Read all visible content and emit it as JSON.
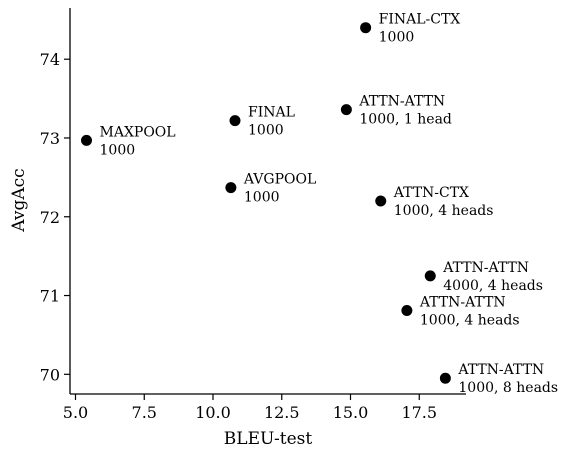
{
  "chart_data": {
    "type": "scatter",
    "xlabel": "BLEU-test",
    "ylabel": "AvgAcc",
    "xlim": [
      4.8,
      19.2
    ],
    "ylim": [
      69.75,
      74.65
    ],
    "xticks": [
      5.0,
      7.5,
      10.0,
      12.5,
      15.0,
      17.5
    ],
    "xtick_labels": [
      "5.0",
      "7.5",
      "10.0",
      "12.5",
      "15.0",
      "17.5"
    ],
    "yticks": [
      70,
      71,
      72,
      73,
      74
    ],
    "ytick_labels": [
      "70",
      "71",
      "72",
      "73",
      "74"
    ],
    "grid": false,
    "legend": "none",
    "points": [
      {
        "x": 5.4,
        "y": 72.97,
        "label": "MAXPOOL",
        "sublabel": "1000"
      },
      {
        "x": 10.8,
        "y": 73.22,
        "label": "FINAL",
        "sublabel": "1000"
      },
      {
        "x": 10.65,
        "y": 72.37,
        "label": "AVGPOOL",
        "sublabel": "1000"
      },
      {
        "x": 15.55,
        "y": 74.4,
        "label": "FINAL-CTX",
        "sublabel": "1000"
      },
      {
        "x": 14.85,
        "y": 73.36,
        "label": "ATTN-ATTN",
        "sublabel": "1000, 1 head"
      },
      {
        "x": 16.1,
        "y": 72.2,
        "label": "ATTN-CTX",
        "sublabel": "1000, 4 heads"
      },
      {
        "x": 17.9,
        "y": 71.25,
        "label": "ATTN-ATTN",
        "sublabel": "4000, 4 heads"
      },
      {
        "x": 17.05,
        "y": 70.81,
        "label": "ATTN-ATTN",
        "sublabel": "1000, 4 heads"
      },
      {
        "x": 18.45,
        "y": 69.95,
        "label": "ATTN-ATTN",
        "sublabel": "1000, 8 heads"
      }
    ],
    "marker_color": "#000000"
  }
}
